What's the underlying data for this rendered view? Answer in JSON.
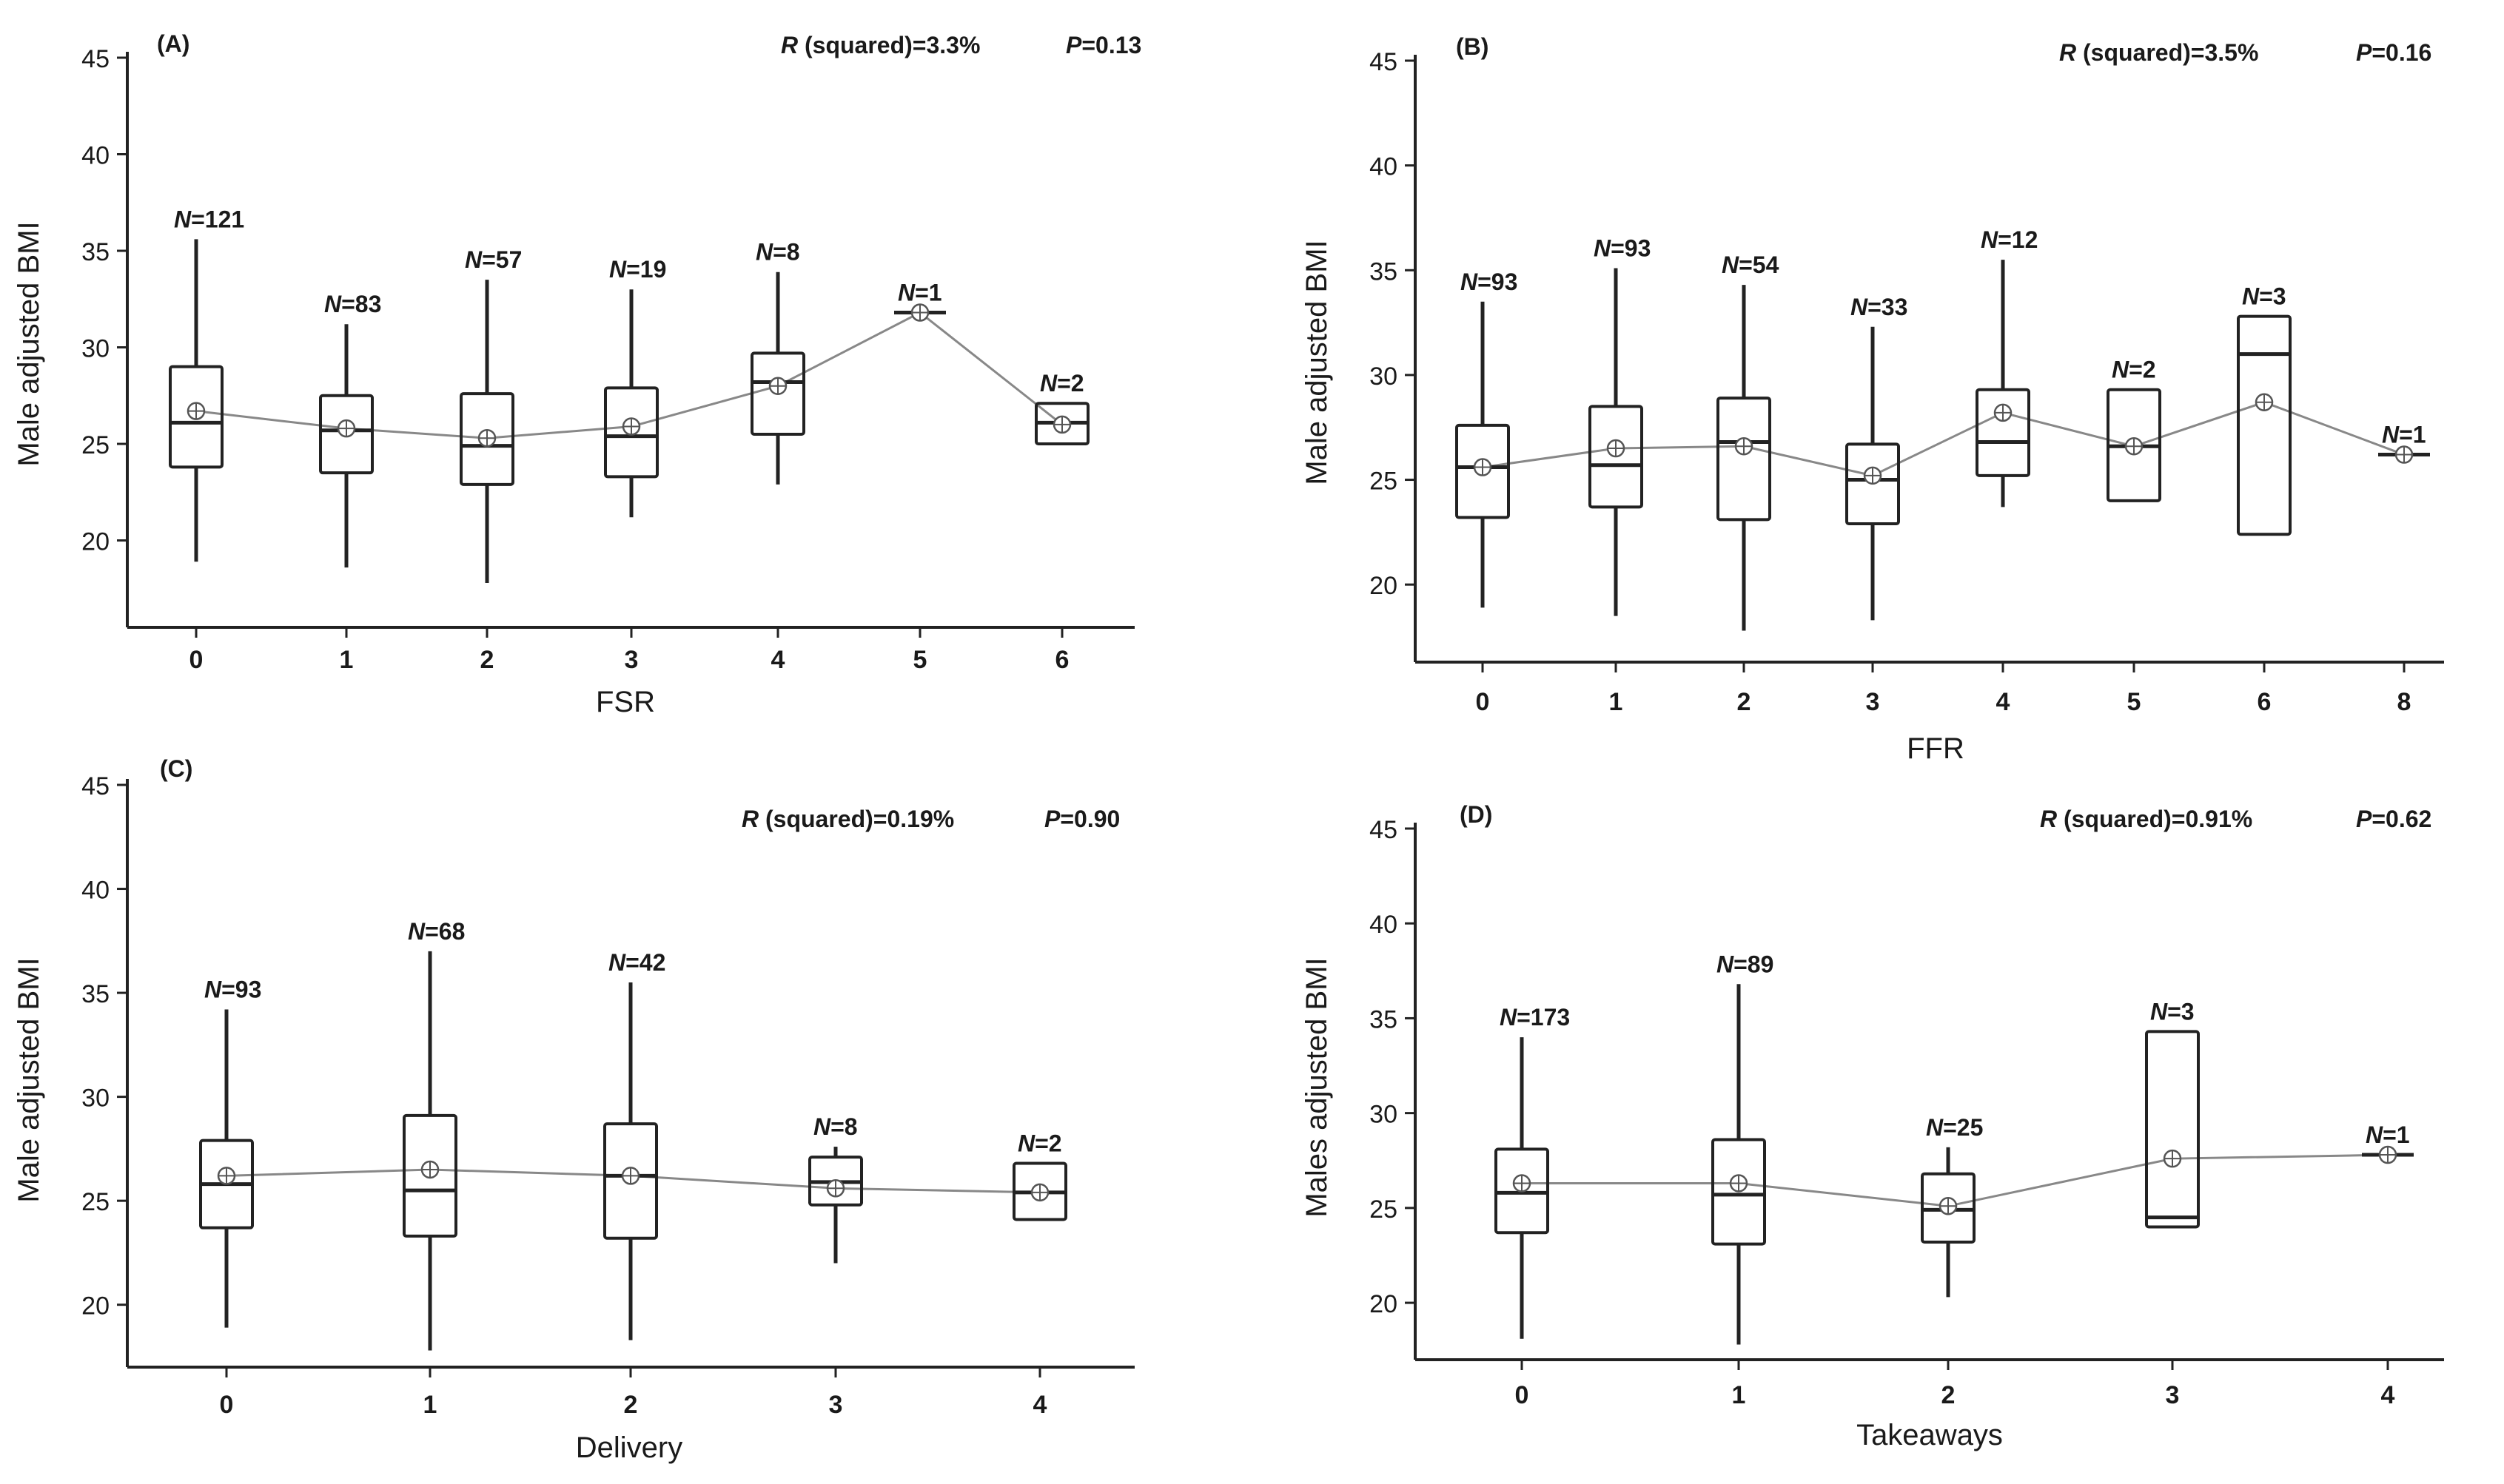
{
  "figure": {
    "colors": {
      "line": "#222222",
      "mean_line": "#888888",
      "background": "#ffffff"
    }
  },
  "chart_data": [
    {
      "type": "box",
      "panel_label": "(A)",
      "xlabel": "FSR",
      "ylabel": "Male adjusted BMI",
      "ylim": [
        15.5,
        45
      ],
      "yticks": [
        20,
        25,
        30,
        35,
        40,
        45
      ],
      "stats": {
        "r_label": "R",
        "r_text": " (squared)=3.3%",
        "p_label": "P",
        "p_text": "=0.13"
      },
      "groups": [
        {
          "category": "0",
          "n_label": "N",
          "n_value": "=121",
          "min": 18.9,
          "q1": 23.8,
          "median": 26.1,
          "q3": 29.0,
          "max": 35.6,
          "mean": 26.7
        },
        {
          "category": "1",
          "n_label": "N",
          "n_value": "=83",
          "min": 18.6,
          "q1": 23.5,
          "median": 25.7,
          "q3": 27.5,
          "max": 31.2,
          "mean": 25.8
        },
        {
          "category": "2",
          "n_label": "N",
          "n_value": "=57",
          "min": 17.8,
          "q1": 22.9,
          "median": 24.9,
          "q3": 27.6,
          "max": 33.5,
          "mean": 25.3
        },
        {
          "category": "3",
          "n_label": "N",
          "n_value": "=19",
          "min": 21.2,
          "q1": 23.3,
          "median": 25.4,
          "q3": 27.9,
          "max": 33.0,
          "mean": 25.9
        },
        {
          "category": "4",
          "n_label": "N",
          "n_value": "=8",
          "min": 22.9,
          "q1": 25.5,
          "median": 28.2,
          "q3": 29.7,
          "max": 33.9,
          "mean": 28.0
        },
        {
          "category": "5",
          "n_label": "N",
          "n_value": "=1",
          "min": 31.8,
          "q1": 31.8,
          "median": 31.8,
          "q3": 31.8,
          "max": 31.8,
          "mean": 31.8
        },
        {
          "category": "6",
          "n_label": "N",
          "n_value": "=2",
          "min": 25.0,
          "q1": 25.0,
          "median": 26.1,
          "q3": 27.1,
          "max": 27.1,
          "mean": 26.0
        }
      ]
    },
    {
      "type": "box",
      "panel_label": "(B)",
      "xlabel": "FFR",
      "ylabel": "Male adjusted BMI",
      "ylim": [
        16.3,
        45
      ],
      "yticks": [
        20,
        25,
        30,
        35,
        40,
        45
      ],
      "stats": {
        "r_label": "R",
        "r_text": " (squared)=3.5%",
        "p_label": "P",
        "p_text": "=0.16"
      },
      "groups": [
        {
          "category": "0",
          "n_label": "N",
          "n_value": "=93",
          "min": 18.9,
          "q1": 23.2,
          "median": 25.6,
          "q3": 27.6,
          "max": 33.5,
          "mean": 25.6
        },
        {
          "category": "1",
          "n_label": "N",
          "n_value": "=93",
          "min": 18.5,
          "q1": 23.7,
          "median": 25.7,
          "q3": 28.5,
          "max": 35.1,
          "mean": 26.5
        },
        {
          "category": "2",
          "n_label": "N",
          "n_value": "=54",
          "min": 17.8,
          "q1": 23.1,
          "median": 26.8,
          "q3": 28.9,
          "max": 34.3,
          "mean": 26.6
        },
        {
          "category": "3",
          "n_label": "N",
          "n_value": "=33",
          "min": 18.3,
          "q1": 22.9,
          "median": 25.0,
          "q3": 26.7,
          "max": 32.3,
          "mean": 25.2
        },
        {
          "category": "4",
          "n_label": "N",
          "n_value": "=12",
          "min": 23.7,
          "q1": 25.2,
          "median": 26.8,
          "q3": 29.3,
          "max": 35.5,
          "mean": 28.2
        },
        {
          "category": "5",
          "n_label": "N",
          "n_value": "=2",
          "min": 24.0,
          "q1": 24.0,
          "median": 26.6,
          "q3": 29.3,
          "max": 29.3,
          "mean": 26.6
        },
        {
          "category": "6",
          "n_label": "N",
          "n_value": "=3",
          "min": 22.4,
          "q1": 22.4,
          "median": 31.0,
          "q3": 32.8,
          "max": 32.8,
          "mean": 28.7
        },
        {
          "category": "8",
          "n_label": "N",
          "n_value": "=1",
          "min": 26.2,
          "q1": 26.2,
          "median": 26.2,
          "q3": 26.2,
          "max": 26.2,
          "mean": 26.2
        }
      ]
    },
    {
      "type": "box",
      "panel_label": "(C)",
      "xlabel": "Delivery",
      "ylabel": "Male adjusted BMI",
      "ylim": [
        17.0,
        45
      ],
      "yticks": [
        20,
        25,
        30,
        35,
        40,
        45
      ],
      "stats": {
        "r_label": "R",
        "r_text": " (squared)=0.19%",
        "p_label": "P",
        "p_text": "=0.90"
      },
      "groups": [
        {
          "category": "0",
          "n_label": "N",
          "n_value": "=93",
          "min": 18.9,
          "q1": 23.7,
          "median": 25.8,
          "q3": 27.9,
          "max": 34.2,
          "mean": 26.2
        },
        {
          "category": "1",
          "n_label": "N",
          "n_value": "=68",
          "min": 17.8,
          "q1": 23.3,
          "median": 25.5,
          "q3": 29.1,
          "max": 37.0,
          "mean": 26.5
        },
        {
          "category": "2",
          "n_label": "N",
          "n_value": "=42",
          "min": 18.3,
          "q1": 23.2,
          "median": 26.2,
          "q3": 28.7,
          "max": 35.5,
          "mean": 26.2
        },
        {
          "category": "3",
          "n_label": "N",
          "n_value": "=8",
          "min": 22.0,
          "q1": 24.8,
          "median": 25.9,
          "q3": 27.1,
          "max": 27.6,
          "mean": 25.6
        },
        {
          "category": "4",
          "n_label": "N",
          "n_value": "=2",
          "min": 24.1,
          "q1": 24.1,
          "median": 25.4,
          "q3": 26.8,
          "max": 26.8,
          "mean": 25.4
        }
      ]
    },
    {
      "type": "box",
      "panel_label": "(D)",
      "xlabel": "Takeaways",
      "ylabel": "Males adjusted BMI",
      "ylim": [
        17.0,
        45
      ],
      "yticks": [
        20,
        25,
        30,
        35,
        40,
        45
      ],
      "stats": {
        "r_label": "R",
        "r_text": " (squared)=0.91%",
        "p_label": "P",
        "p_text": "=0.62"
      },
      "groups": [
        {
          "category": "0",
          "n_label": "N",
          "n_value": "=173",
          "min": 18.1,
          "q1": 23.7,
          "median": 25.8,
          "q3": 28.1,
          "max": 34.0,
          "mean": 26.3
        },
        {
          "category": "1",
          "n_label": "N",
          "n_value": "=89",
          "min": 17.8,
          "q1": 23.1,
          "median": 25.7,
          "q3": 28.6,
          "max": 36.8,
          "mean": 26.3
        },
        {
          "category": "2",
          "n_label": "N",
          "n_value": "=25",
          "min": 20.3,
          "q1": 23.2,
          "median": 24.9,
          "q3": 26.8,
          "max": 28.2,
          "mean": 25.1
        },
        {
          "category": "3",
          "n_label": "N",
          "n_value": "=3",
          "min": 24.0,
          "q1": 24.0,
          "median": 24.5,
          "q3": 34.3,
          "max": 34.3,
          "mean": 27.6
        },
        {
          "category": "4",
          "n_label": "N",
          "n_value": "=1",
          "min": 27.8,
          "q1": 27.8,
          "median": 27.8,
          "q3": 27.8,
          "max": 27.8,
          "mean": 27.8
        }
      ]
    }
  ]
}
